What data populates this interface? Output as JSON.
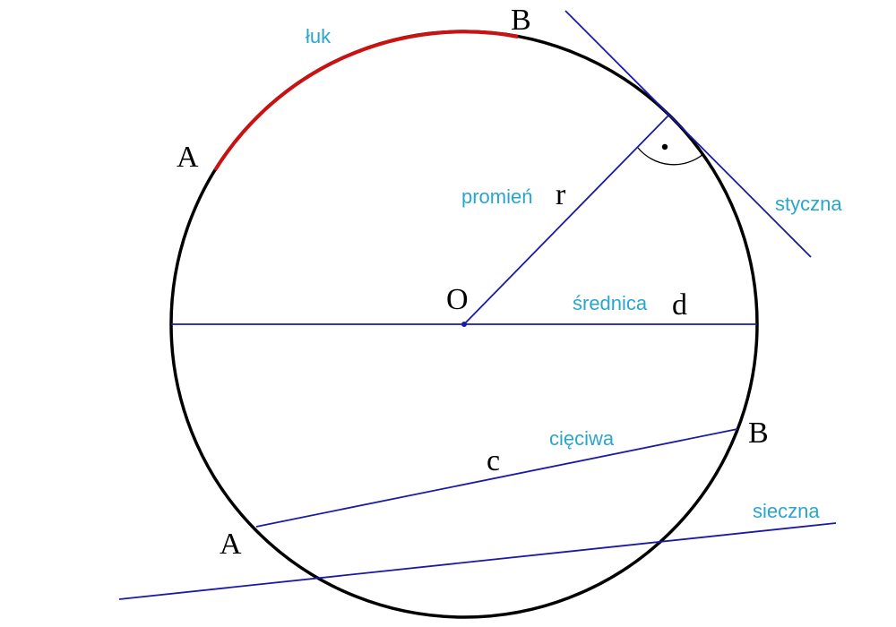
{
  "labels": {
    "arc": "łuk",
    "arc_start": "A",
    "arc_end": "B",
    "center": "O",
    "radius_name": "promień",
    "radius_symbol": "r",
    "diameter_name": "średnica",
    "diameter_symbol": "d",
    "tangent_name": "styczna",
    "chord_name": "cięciwa",
    "chord_symbol": "c",
    "chord_start": "A",
    "chord_end": "B",
    "secant_name": "sieczna"
  },
  "colors": {
    "circle": "#000000",
    "arc": "#cc1111",
    "lines": "#1a1aa6",
    "term_labels": "#2aa6cc",
    "point_labels": "#000000"
  }
}
